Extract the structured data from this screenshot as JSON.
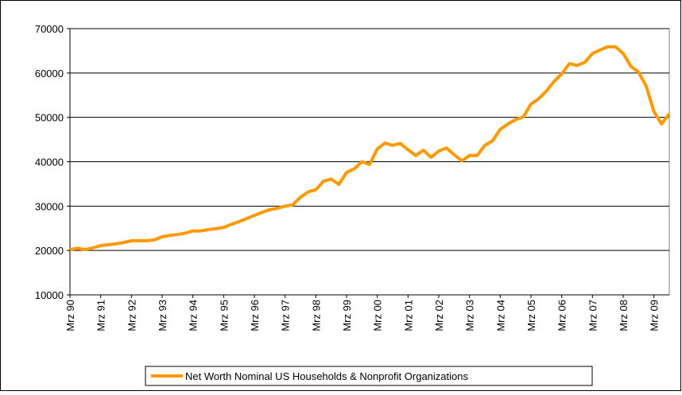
{
  "chart_data": {
    "type": "line",
    "categories": [
      "Mrz 90",
      null,
      null,
      null,
      "Mrz 91",
      null,
      null,
      null,
      "Mrz 92",
      null,
      null,
      null,
      "Mrz 93",
      null,
      null,
      null,
      "Mrz 94",
      null,
      null,
      null,
      "Mrz 95",
      null,
      null,
      null,
      "Mrz 96",
      null,
      null,
      null,
      "Mrz 97",
      null,
      null,
      null,
      "Mrz 98",
      null,
      null,
      null,
      "Mrz 99",
      null,
      null,
      null,
      "Mrz 00",
      null,
      null,
      null,
      "Mrz 01",
      null,
      null,
      null,
      "Mrz 02",
      null,
      null,
      null,
      "Mrz 03",
      null,
      null,
      null,
      "Mrz 04",
      null,
      null,
      null,
      "Mrz 05",
      null,
      null,
      null,
      "Mrz 06",
      null,
      null,
      null,
      "Mrz 07",
      null,
      null,
      null,
      "Mrz 08",
      null,
      null,
      null,
      "Mrz 09",
      null,
      null
    ],
    "series": [
      {
        "name": "Net Worth Nominal US Households & Nonprofit Organizations",
        "color": "#ff9900",
        "values": [
          20200,
          20500,
          20200,
          20600,
          21100,
          21300,
          21500,
          21800,
          22200,
          22200,
          22200,
          22400,
          23100,
          23400,
          23600,
          23900,
          24400,
          24400,
          24700,
          24900,
          25200,
          25900,
          26500,
          27200,
          27900,
          28600,
          29200,
          29500,
          30000,
          30300,
          32000,
          33200,
          33700,
          35600,
          36100,
          34900,
          37600,
          38400,
          40000,
          39400,
          42900,
          44200,
          43700,
          44100,
          42700,
          41400,
          42600,
          41000,
          42400,
          43100,
          41600,
          40200,
          41400,
          41400,
          43700,
          44700,
          47300,
          48500,
          49500,
          50100,
          53000,
          54200,
          55900,
          58100,
          59800,
          62100,
          61700,
          62400,
          64400,
          65200,
          65900,
          65900,
          64400,
          61500,
          60200,
          57000,
          51300,
          48500,
          50800
        ]
      }
    ],
    "ylim": [
      10000,
      70000
    ],
    "yticks": [
      10000,
      20000,
      30000,
      40000,
      50000,
      60000,
      70000
    ],
    "grid": true,
    "legend": "bottom"
  }
}
